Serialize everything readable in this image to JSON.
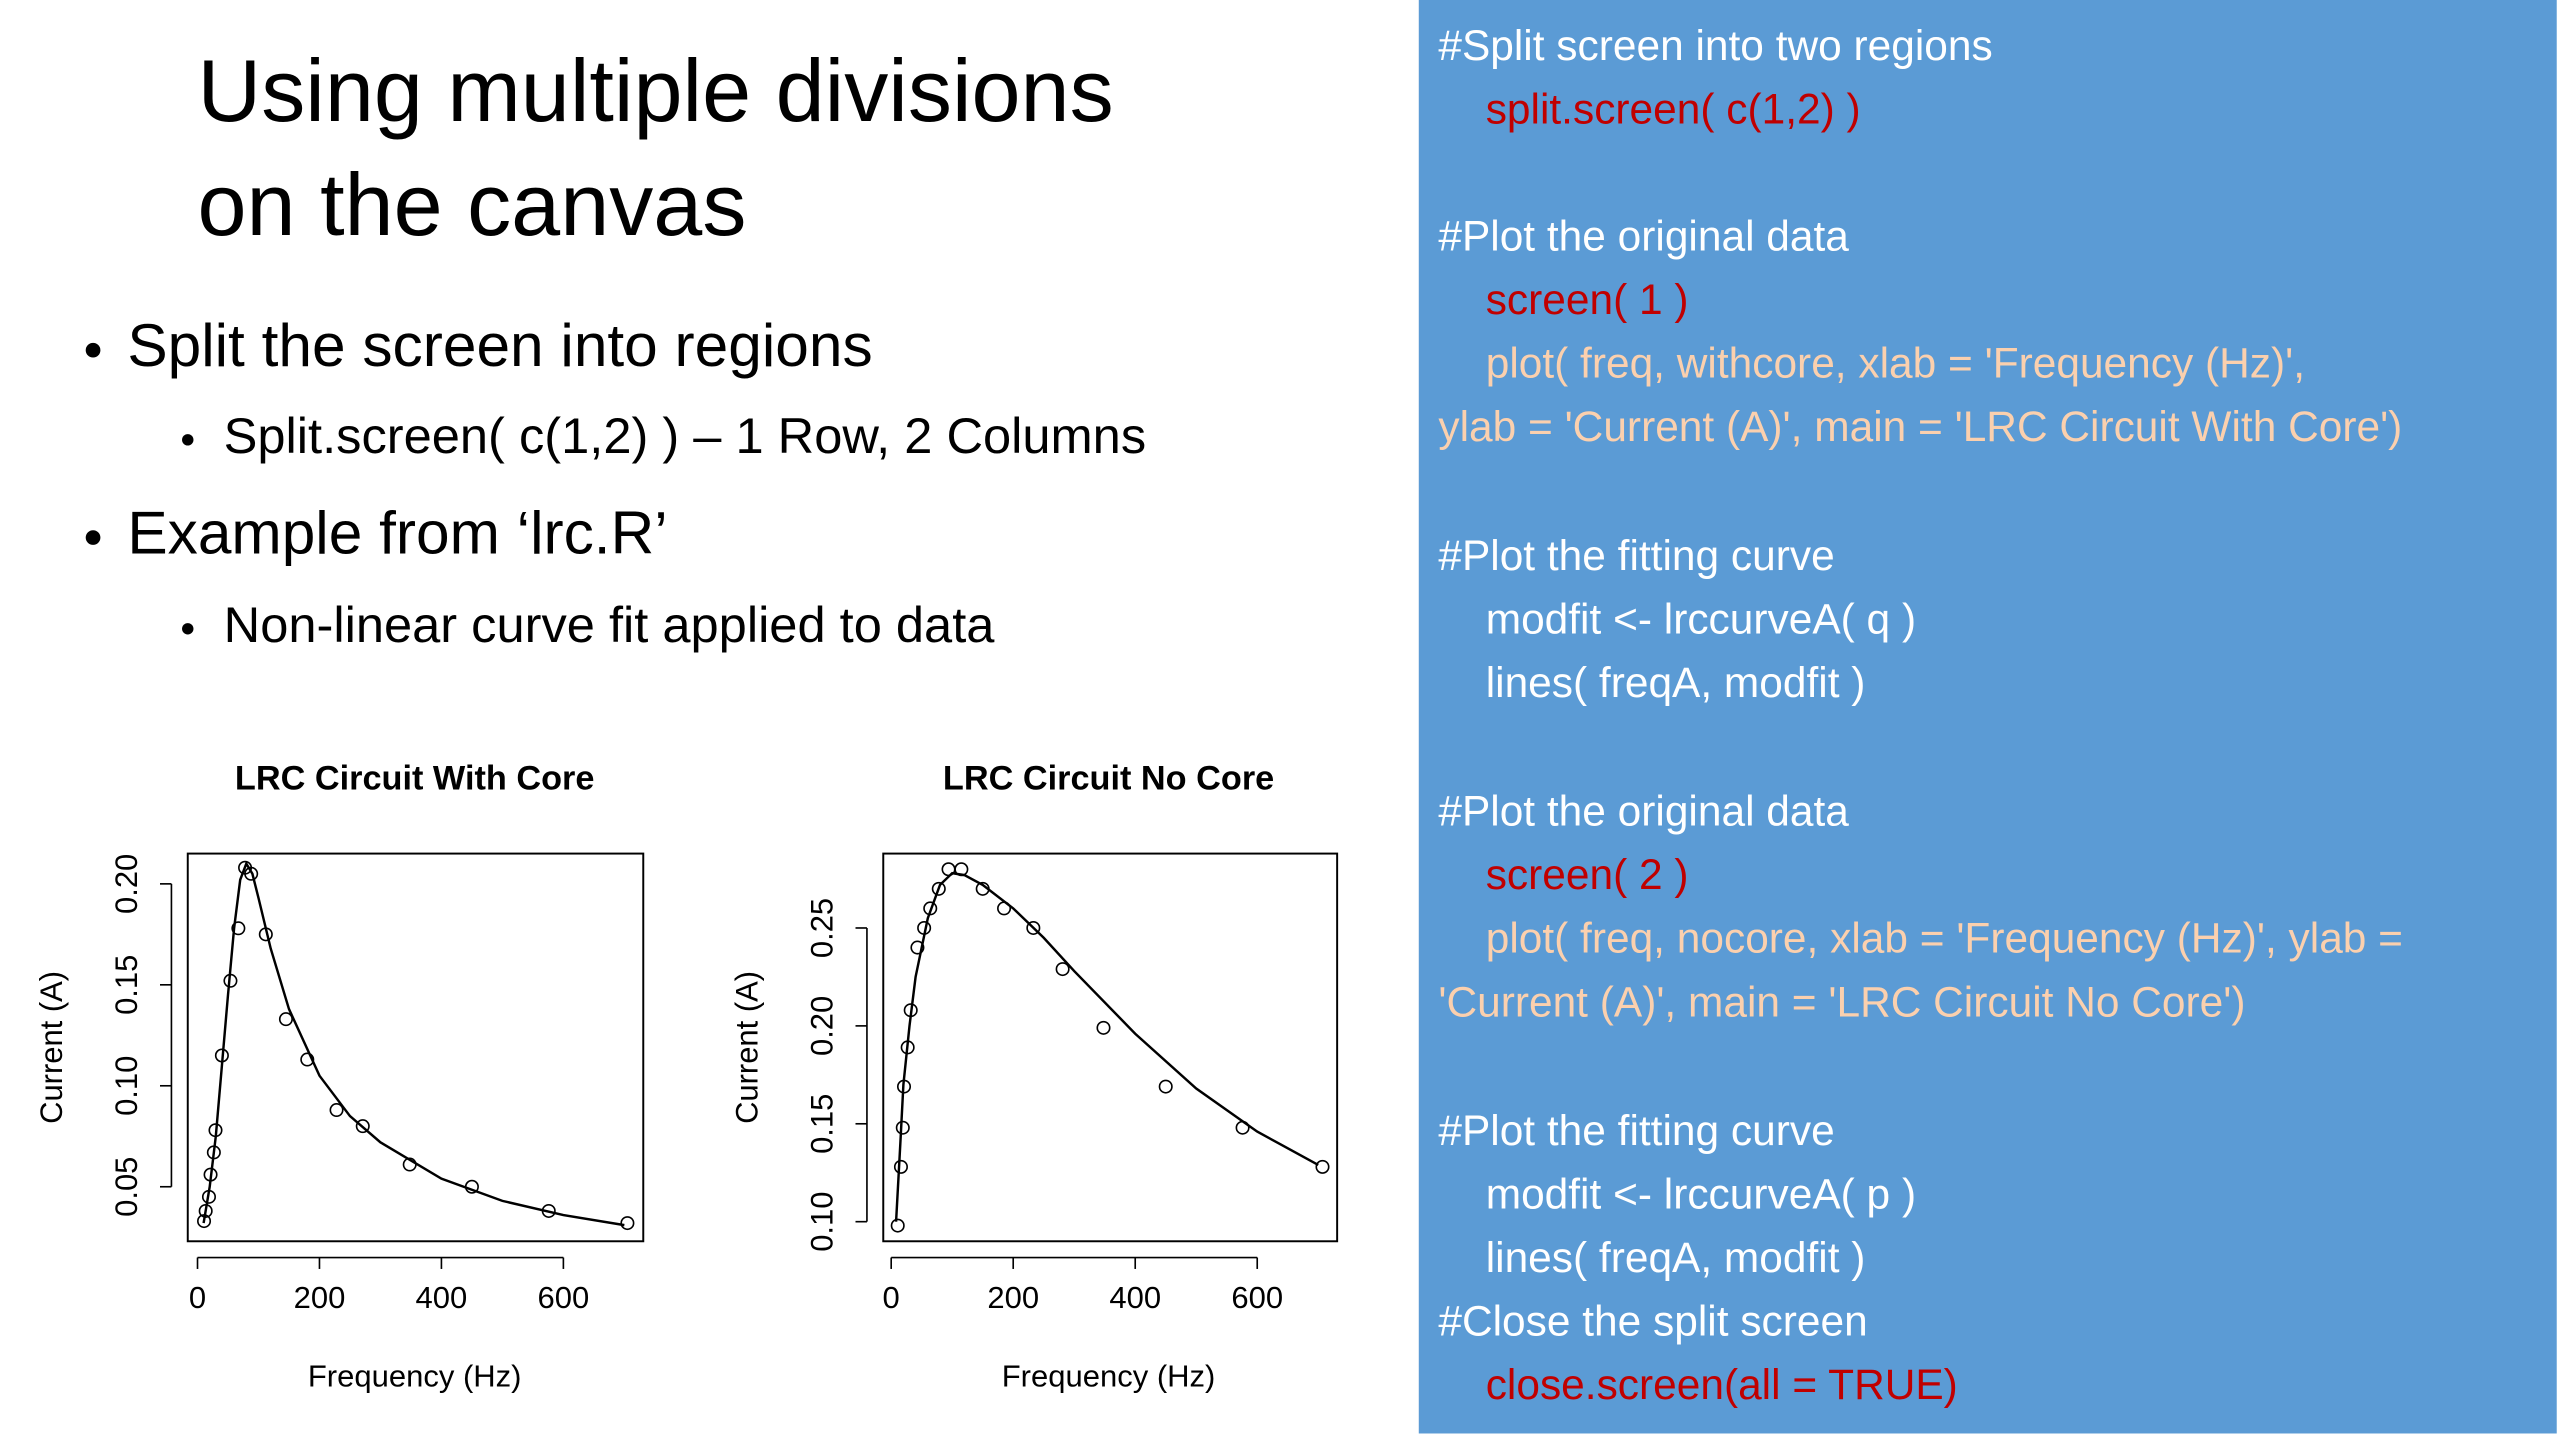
{
  "slide": {
    "title": [
      "Using multiple divisions",
      "on the canvas"
    ],
    "bullets": [
      {
        "level": 1,
        "text": "Split the screen into regions"
      },
      {
        "level": 2,
        "text": "Split.screen( c(1,2) ) – 1 Row, 2 Columns"
      },
      {
        "level": 1,
        "text": "Example from ‘lrc.R’"
      },
      {
        "level": 2,
        "text": "Non-linear curve fit applied to data"
      }
    ]
  },
  "code": [
    {
      "text": "#Split screen into two regions",
      "color": "#ffffff",
      "indent": false
    },
    {
      "text": "split.screen( c(1,2) )",
      "color": "#c00000",
      "indent": true
    },
    {
      "text": "#Plot the original data",
      "color": "#ffffff",
      "indent": false
    },
    {
      "text": "screen( 1 )",
      "color": "#c00000",
      "indent": true
    },
    {
      "text": "plot( freq, withcore, xlab = 'Frequency (Hz)',",
      "color": "#fbd0ae",
      "indent": true
    },
    {
      "text": "ylab = 'Current (A)', main = 'LRC Circuit With Core')",
      "color": "#fbd0ae",
      "indent": false
    },
    {
      "text": "#Plot the fitting curve",
      "color": "#ffffff",
      "indent": false
    },
    {
      "text": "modfit <- lrccurveA( q )",
      "color": "#ffffff",
      "indent": true
    },
    {
      "text": "lines( freqA, modfit )",
      "color": "#ffffff",
      "indent": true
    },
    {
      "text": "#Plot the original data",
      "color": "#ffffff",
      "indent": false
    },
    {
      "text": "screen( 2 )",
      "color": "#c00000",
      "indent": true
    },
    {
      "text": "plot( freq, nocore, xlab = 'Frequency (Hz)', ylab =",
      "color": "#fbd0ae",
      "indent": true
    },
    {
      "text": "'Current (A)', main = 'LRC Circuit No Core')",
      "color": "#fbd0ae",
      "indent": false
    },
    {
      "text": "#Plot the fitting curve",
      "color": "#ffffff",
      "indent": false
    },
    {
      "text": "modfit <- lrccurveA( p )",
      "color": "#ffffff",
      "indent": true
    },
    {
      "text": "lines( freqA, modfit )",
      "color": "#ffffff",
      "indent": true
    },
    {
      "text": "#Close the split screen",
      "color": "#ffffff",
      "indent": false
    },
    {
      "text": "close.screen(all = TRUE)",
      "color": "#c00000",
      "indent": true
    }
  ],
  "chart_data": [
    {
      "type": "scatter",
      "title": "LRC Circuit With Core",
      "x_label": "Frequency (Hz)",
      "y_label": "Current (A)",
      "xlim": [
        -16,
        731
      ],
      "ylim": [
        0.023,
        0.215
      ],
      "xticks": [
        0,
        200,
        400,
        600
      ],
      "yticks": [
        0.05,
        {
          "value": 0.1,
          "label": "0.10"
        },
        0.15,
        {
          "value": 0.2,
          "label": "0.20"
        }
      ],
      "series": [
        {
          "kind": "points",
          "color": "#000000",
          "x": [
            10.7,
            13.4,
            18.8,
            21.4,
            26.8,
            29.5,
            40,
            54,
            67,
            78,
            88,
            112,
            145,
            180,
            228,
            271,
            348,
            450,
            576,
            705
          ],
          "values": [
            0.033,
            0.038,
            0.045,
            0.056,
            0.067,
            0.078,
            0.115,
            0.152,
            0.178,
            0.208,
            0.205,
            0.175,
            0.133,
            0.113,
            0.088,
            0.08,
            0.061,
            0.05,
            0.038,
            0.032
          ]
        },
        {
          "kind": "line",
          "color": "#000000",
          "x": [
            10,
            20,
            30,
            40,
            50,
            60,
            70,
            80,
            90,
            100,
            120,
            150,
            200,
            250,
            300,
            400,
            500,
            600,
            700
          ],
          "values": [
            0.032,
            0.05,
            0.075,
            0.11,
            0.145,
            0.178,
            0.202,
            0.21,
            0.205,
            0.193,
            0.168,
            0.138,
            0.105,
            0.085,
            0.072,
            0.054,
            0.043,
            0.036,
            0.031
          ]
        }
      ]
    },
    {
      "type": "scatter",
      "title": "LRC Circuit No Core",
      "x_label": "Frequency (Hz)",
      "y_label": "Current (A)",
      "xlim": [
        -13,
        731
      ],
      "ylim": [
        0.09,
        0.288
      ],
      "xticks": [
        0,
        200,
        400,
        600
      ],
      "yticks": [
        {
          "value": 0.1,
          "label": "0.10"
        },
        0.15,
        {
          "value": 0.2,
          "label": "0.20"
        },
        0.25
      ],
      "series": [
        {
          "kind": "points",
          "color": "#000000",
          "x": [
            10.7,
            16,
            19,
            21,
            27,
            32,
            43,
            54,
            64,
            78,
            94,
            115,
            150,
            185,
            233,
            281,
            348,
            450,
            576,
            707
          ],
          "values": [
            0.098,
            0.128,
            0.148,
            0.169,
            0.189,
            0.208,
            0.24,
            0.25,
            0.26,
            0.27,
            0.28,
            0.28,
            0.27,
            0.26,
            0.25,
            0.229,
            0.199,
            0.169,
            0.148,
            0.128
          ]
        },
        {
          "kind": "line",
          "color": "#000000",
          "x": [
            8,
            15,
            20,
            30,
            40,
            60,
            80,
            100,
            120,
            150,
            200,
            250,
            300,
            400,
            500,
            600,
            700
          ],
          "values": [
            0.1,
            0.14,
            0.17,
            0.2,
            0.225,
            0.255,
            0.272,
            0.278,
            0.277,
            0.272,
            0.26,
            0.245,
            0.228,
            0.196,
            0.168,
            0.146,
            0.129
          ]
        }
      ]
    }
  ]
}
